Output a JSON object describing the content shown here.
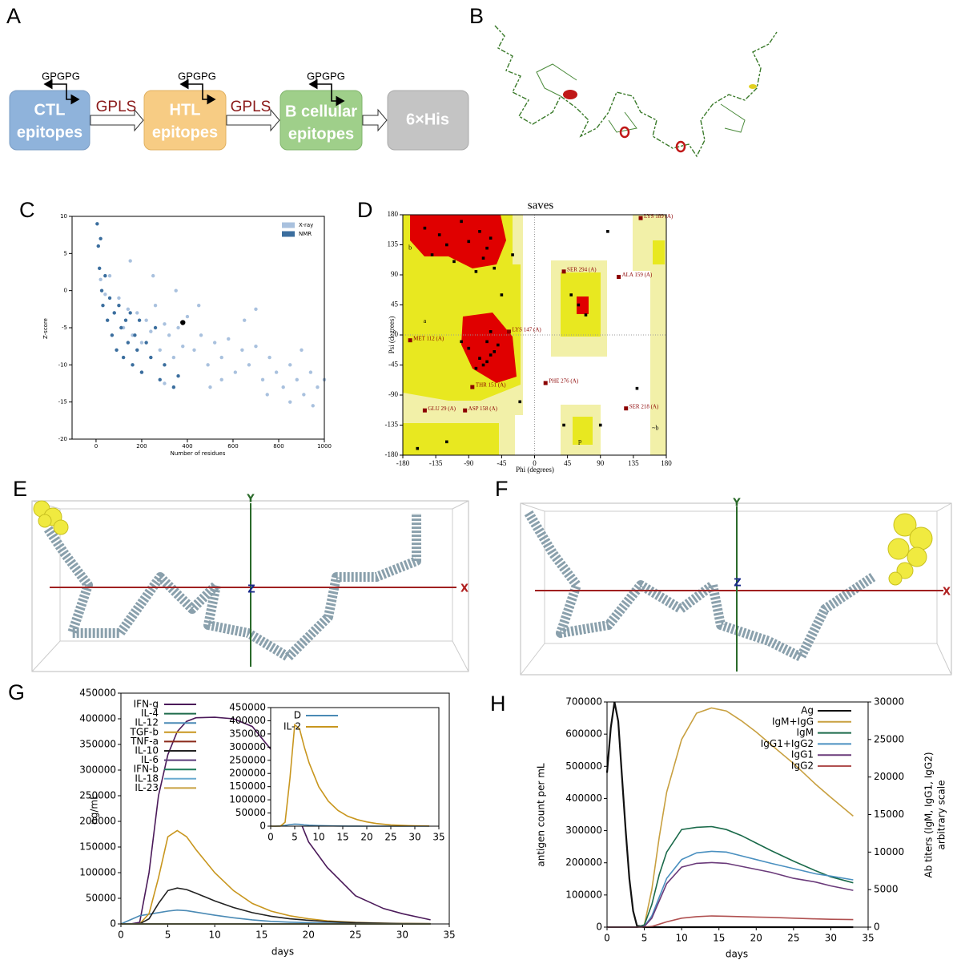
{
  "panel_labels": [
    "A",
    "B",
    "C",
    "D",
    "E",
    "F",
    "G",
    "H"
  ],
  "diagram": {
    "linker_top": [
      "GPGPG",
      "GPGPG",
      "GPGPG"
    ],
    "blocks": [
      [
        "CTL",
        "epitopes"
      ],
      [
        "HTL",
        "epitopes"
      ],
      [
        "B cellular",
        "epitopes"
      ],
      [
        "6×His"
      ]
    ],
    "linkers": [
      "GPLS",
      "GPLS"
    ]
  },
  "structures": [
    {
      "x_label": "X",
      "y_label": "Y",
      "z_label": "Z"
    },
    {
      "x_label": "X",
      "y_label": "Y",
      "z_label": "Z"
    }
  ],
  "chart_data": [
    {
      "type": "scatter",
      "x_label": "Number of residues",
      "y_label": "Z-score",
      "xlim": [
        -105,
        1000
      ],
      "ylim": [
        -20,
        10
      ],
      "xticks": [
        0,
        200,
        400,
        600,
        800,
        1000
      ],
      "yticks": [
        -20,
        -15,
        -10,
        -5,
        0,
        5,
        10
      ],
      "legend": "upper right",
      "series": [
        {
          "name": "X-ray",
          "color": "#a9c1de",
          "x": [
            20,
            40,
            60,
            80,
            100,
            120,
            140,
            160,
            180,
            200,
            220,
            240,
            260,
            280,
            300,
            320,
            340,
            360,
            380,
            400,
            430,
            460,
            490,
            520,
            550,
            580,
            610,
            640,
            670,
            700,
            730,
            760,
            790,
            820,
            850,
            880,
            910,
            940,
            970,
            1000,
            150,
            250,
            350,
            450,
            550,
            650,
            750,
            850,
            950,
            200,
            300,
            500,
            700,
            900
          ],
          "y": [
            1.5,
            -0.5,
            2,
            -3,
            -1,
            -5,
            -2.5,
            -6,
            -3,
            -7,
            -4,
            -5.5,
            -2,
            -8,
            -4.5,
            -6,
            -9,
            -5,
            -7.5,
            -3.5,
            -8,
            -6,
            -10,
            -7,
            -9,
            -6.5,
            -11,
            -8,
            -10,
            -7.5,
            -12,
            -9,
            -11,
            -13,
            -10,
            -12,
            -14,
            -11,
            -13,
            -12,
            4,
            2,
            0,
            -2,
            -12,
            -4,
            -14,
            -15,
            -15.5,
            -11,
            -12.5,
            -13,
            -2.5,
            -8
          ]
        },
        {
          "name": "NMR",
          "color": "#3b6e9e",
          "x": [
            5,
            10,
            15,
            20,
            25,
            30,
            40,
            50,
            60,
            70,
            80,
            90,
            100,
            110,
            120,
            130,
            140,
            150,
            160,
            170,
            180,
            190,
            200,
            220,
            240,
            260,
            280,
            300,
            340,
            360
          ],
          "y": [
            9,
            6,
            3,
            7,
            0,
            -2,
            2,
            -4,
            -1,
            -6,
            -3,
            -8,
            -2,
            -5,
            -9,
            -4,
            -7,
            -3,
            -10,
            -6,
            -8,
            -4,
            -11,
            -7,
            -9,
            -5,
            -12,
            -10,
            -13,
            -11.5
          ]
        }
      ],
      "highlight": {
        "x": 380,
        "y": -4.3,
        "color": "#000000"
      }
    },
    {
      "type": "scatter",
      "title": "saves",
      "x_label": "Phi (degrees)",
      "y_label": "Psi (degrees)",
      "xlim": [
        -180,
        180
      ],
      "ylim": [
        -180,
        180
      ],
      "xticks": [
        -180,
        -135,
        -90,
        -45,
        0,
        45,
        90,
        135,
        180
      ],
      "yticks": [
        -180,
        -135,
        -90,
        -45,
        0,
        45,
        90,
        135,
        180
      ],
      "zero_lines": true,
      "series": [
        {
          "color": "#000000",
          "x": [
            -150,
            -130,
            -120,
            -100,
            -90,
            -75,
            -65,
            -60,
            -140,
            -110,
            -70,
            -55,
            -80,
            -65,
            -60,
            -70,
            -55,
            -75,
            -90,
            -50,
            -65,
            -80,
            -100,
            -60,
            -45,
            -30,
            50,
            60,
            70,
            100,
            -160,
            -120,
            140,
            40,
            90,
            -20
          ],
          "y": [
            160,
            150,
            135,
            170,
            140,
            155,
            130,
            145,
            120,
            110,
            115,
            100,
            95,
            -40,
            -30,
            -45,
            -25,
            -35,
            -20,
            -15,
            -10,
            -50,
            -10,
            5,
            60,
            120,
            60,
            45,
            30,
            155,
            -170,
            -160,
            -80,
            -135,
            -135,
            -100
          ]
        }
      ],
      "annotation_color": "#8b0000",
      "annotations": [
        {
          "text": "LYS 189 (A)",
          "x": 145,
          "y": 175
        },
        {
          "text": "SER 294 (A)",
          "x": 40,
          "y": 95
        },
        {
          "text": "ALA 159 (A)",
          "x": 115,
          "y": 87
        },
        {
          "text": "THR 151 (A)",
          "x": -85,
          "y": -78
        },
        {
          "text": "LYS 147 (A)",
          "x": -35,
          "y": 5
        },
        {
          "text": "MET 112 (A)",
          "x": -170,
          "y": -8
        },
        {
          "text": "PHE 276 (A)",
          "x": 15,
          "y": -72
        },
        {
          "text": "GLU 29 (A)",
          "x": -150,
          "y": -113
        },
        {
          "text": "ASP 158 (A)",
          "x": -95,
          "y": -113
        },
        {
          "text": "SER 218 (A)",
          "x": 125,
          "y": -110
        }
      ],
      "region_labels": [
        {
          "text": "b",
          "x": -170,
          "y": 130
        },
        {
          "text": "a",
          "x": -150,
          "y": 20
        },
        {
          "text": "p",
          "x": 62,
          "y": -160
        },
        {
          "text": "~b",
          "x": 165,
          "y": -140
        }
      ]
    },
    {
      "type": "line",
      "x_label": "days",
      "y_label": "ng/mL",
      "xlim": [
        0,
        35
      ],
      "ylim": [
        0,
        450000
      ],
      "xticks": [
        0,
        5,
        10,
        15,
        20,
        25,
        30,
        35
      ],
      "yticks": [
        0,
        50000,
        100000,
        150000,
        200000,
        250000,
        300000,
        350000,
        400000,
        450000
      ],
      "legend": "upper left",
      "x": [
        0,
        1,
        2,
        3,
        4,
        5,
        6,
        7,
        8,
        10,
        12,
        14,
        16,
        18,
        20,
        22,
        25,
        28,
        30,
        33
      ],
      "series": [
        {
          "name": "IFN-g",
          "color": "#4b1a5a",
          "values": [
            0,
            0,
            3000,
            100000,
            250000,
            330000,
            375000,
            395000,
            402000,
            403000,
            400000,
            385000,
            340000,
            250000,
            160000,
            110000,
            55000,
            30000,
            20000,
            8000
          ]
        },
        {
          "name": "IL-4",
          "color": "#1e6b4b",
          "values": [
            0,
            0,
            0,
            0,
            0,
            0,
            0,
            0,
            0,
            0,
            0,
            0,
            0,
            0,
            0,
            0,
            0,
            0,
            0,
            0
          ]
        },
        {
          "name": "IL-12",
          "color": "#4a8ab5",
          "values": [
            0,
            8000,
            16000,
            19000,
            22000,
            25000,
            27000,
            26000,
            23000,
            17000,
            12000,
            8000,
            5000,
            3500,
            2500,
            1500,
            800,
            400,
            200,
            100
          ]
        },
        {
          "name": "TGF-b",
          "color": "#c8961e",
          "values": [
            0,
            0,
            0,
            20000,
            90000,
            170000,
            182000,
            170000,
            145000,
            100000,
            65000,
            40000,
            25000,
            16000,
            10000,
            6000,
            3000,
            1500,
            1000,
            500
          ]
        },
        {
          "name": "TNF-a",
          "color": "#8b2a1a",
          "values": [
            0,
            0,
            0,
            0,
            0,
            0,
            0,
            0,
            0,
            0,
            0,
            0,
            0,
            0,
            0,
            0,
            0,
            0,
            0,
            0
          ]
        },
        {
          "name": "IL-10",
          "color": "#222222",
          "values": [
            0,
            0,
            0,
            10000,
            40000,
            65000,
            70000,
            67000,
            60000,
            45000,
            32000,
            22000,
            15000,
            10000,
            7000,
            4500,
            2500,
            1200,
            800,
            400
          ]
        },
        {
          "name": "IL-6",
          "color": "#5a3a7a",
          "values": [
            0,
            0,
            0,
            0,
            0,
            0,
            0,
            0,
            0,
            0,
            0,
            0,
            0,
            0,
            0,
            0,
            0,
            0,
            0,
            0
          ]
        },
        {
          "name": "IFN-b",
          "color": "#1e7a5a",
          "values": [
            0,
            0,
            0,
            0,
            0,
            0,
            0,
            0,
            0,
            0,
            0,
            0,
            0,
            0,
            0,
            0,
            0,
            0,
            0,
            0
          ]
        },
        {
          "name": "IL-18",
          "color": "#6aaad0",
          "values": [
            0,
            0,
            0,
            0,
            0,
            0,
            0,
            0,
            0,
            0,
            0,
            0,
            0,
            0,
            0,
            0,
            0,
            0,
            0,
            0
          ]
        },
        {
          "name": "IL-23",
          "color": "#c8a040",
          "values": [
            0,
            0,
            0,
            0,
            0,
            0,
            0,
            0,
            0,
            0,
            0,
            0,
            0,
            0,
            0,
            0,
            0,
            0,
            0,
            0
          ]
        }
      ]
    },
    {
      "type": "line",
      "inset": true,
      "xlim": [
        0,
        35
      ],
      "ylim": [
        0,
        450000
      ],
      "xticks": [
        0,
        5,
        10,
        15,
        20,
        25,
        30,
        35
      ],
      "yticks": [
        0,
        50000,
        100000,
        150000,
        200000,
        250000,
        300000,
        350000,
        400000,
        450000
      ],
      "legend": "upper left",
      "x": [
        0,
        1,
        2,
        3,
        4,
        5,
        6,
        7,
        8,
        10,
        12,
        14,
        16,
        18,
        20,
        22,
        25,
        28,
        30,
        33
      ],
      "series": [
        {
          "name": "D",
          "color": "#4a8ab5",
          "values": [
            0,
            0,
            1000,
            3000,
            6000,
            8000,
            7000,
            5000,
            3500,
            2000,
            1200,
            700,
            400,
            200,
            100,
            50,
            0,
            0,
            0,
            0
          ]
        },
        {
          "name": "IL-2",
          "color": "#c8961e",
          "values": [
            0,
            0,
            0,
            15000,
            180000,
            385000,
            370000,
            300000,
            240000,
            150000,
            95000,
            60000,
            38000,
            25000,
            16000,
            10000,
            5000,
            2500,
            1500,
            600
          ]
        }
      ]
    },
    {
      "type": "line",
      "x_label": "days",
      "y_label": "antigen count per mL",
      "y2_label": [
        "Ab titers (IgM, IgG1, IgG2)",
        "arbitrary scale"
      ],
      "xlim": [
        0,
        35
      ],
      "ylim": [
        0,
        700000
      ],
      "y2lim": [
        0,
        30000
      ],
      "xticks": [
        0,
        5,
        10,
        15,
        20,
        25,
        30,
        35
      ],
      "yticks": [
        0,
        100000,
        200000,
        300000,
        400000,
        500000,
        600000,
        700000
      ],
      "y2ticks": [
        0,
        5000,
        10000,
        15000,
        20000,
        25000,
        30000
      ],
      "legend": "upper right",
      "x": [
        0,
        0.5,
        1,
        1.5,
        2,
        2.5,
        3,
        3.5,
        4,
        5,
        6,
        7,
        8,
        10,
        12,
        14,
        16,
        18,
        20,
        22,
        25,
        28,
        30,
        33
      ],
      "series": [
        {
          "name": "Ag",
          "color": "#111111",
          "values": [
            480000,
            620000,
            700000,
            640000,
            470000,
            300000,
            150000,
            50000,
            5000,
            0,
            0,
            0,
            0,
            0,
            0,
            0,
            0,
            0,
            0,
            0,
            0,
            0,
            0,
            0
          ]
        },
        {
          "name": "IgM+IgG",
          "color": "#c8a040",
          "axis": "y2",
          "values": [
            0,
            0,
            0,
            0,
            0,
            0,
            0,
            0,
            0,
            300,
            5000,
            12000,
            18000,
            25000,
            28500,
            29200,
            28800,
            27500,
            26000,
            24300,
            21800,
            19000,
            17300,
            14800
          ]
        },
        {
          "name": "IgM",
          "color": "#1a6a4a",
          "axis": "y2",
          "values": [
            0,
            0,
            0,
            0,
            0,
            0,
            0,
            0,
            0,
            300,
            3000,
            7000,
            10000,
            13000,
            13300,
            13400,
            13000,
            12200,
            11200,
            10200,
            8800,
            7500,
            6700,
            5900
          ]
        },
        {
          "name": "IgG1+IgG2",
          "color": "#4a90c0",
          "axis": "y2",
          "values": [
            0,
            0,
            0,
            0,
            0,
            0,
            0,
            0,
            0,
            100,
            1500,
            4000,
            6500,
            9000,
            9900,
            10100,
            10000,
            9500,
            9000,
            8500,
            7800,
            7100,
            6800,
            6300
          ]
        },
        {
          "name": "IgG1",
          "color": "#6a3a7a",
          "axis": "y2",
          "values": [
            0,
            0,
            0,
            0,
            0,
            0,
            0,
            0,
            0,
            100,
            1200,
            3500,
            5800,
            8000,
            8500,
            8600,
            8500,
            8100,
            7700,
            7300,
            6500,
            6000,
            5500,
            4900
          ]
        },
        {
          "name": "IgG2",
          "color": "#b05050",
          "axis": "y2",
          "values": [
            0,
            0,
            0,
            0,
            0,
            0,
            0,
            0,
            0,
            0,
            100,
            400,
            700,
            1200,
            1400,
            1500,
            1450,
            1400,
            1350,
            1300,
            1200,
            1100,
            1050,
            1000
          ]
        }
      ]
    }
  ]
}
